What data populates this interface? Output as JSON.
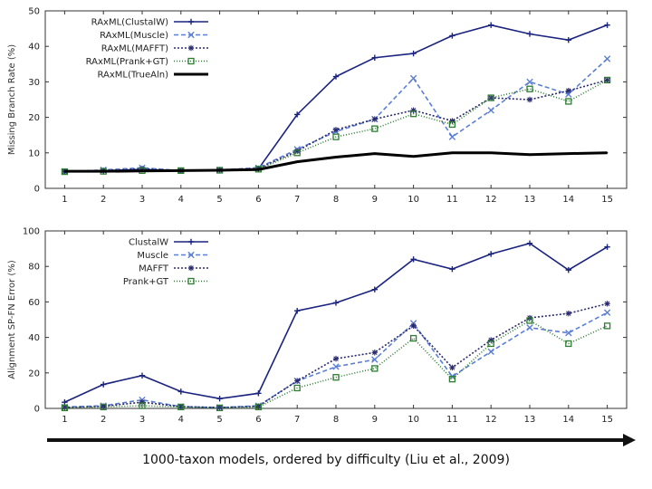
{
  "chart_data": [
    {
      "type": "line",
      "ylabel": "Missing Branch Rate (%)",
      "x": [
        1,
        2,
        3,
        4,
        5,
        6,
        7,
        8,
        9,
        10,
        11,
        12,
        13,
        14,
        15
      ],
      "xlim": [
        0.5,
        15.5
      ],
      "ylim": [
        0,
        50
      ],
      "yticks": [
        0,
        10,
        20,
        30,
        40,
        50
      ],
      "legend_position": "top-left",
      "series": [
        {
          "name": "RAxML(ClustalW)",
          "color": "#1a237e",
          "dash": "",
          "marker": "plus",
          "values": [
            4.8,
            5.0,
            5.3,
            5.0,
            5.2,
            5.5,
            20.8,
            31.5,
            36.8,
            38.0,
            43.0,
            46.0,
            43.5,
            41.8,
            46.0
          ]
        },
        {
          "name": "RAxML(Muscle)",
          "color": "#5b7fd6",
          "dash": "5,3",
          "marker": "x",
          "values": [
            4.7,
            5.2,
            5.8,
            5.0,
            5.2,
            5.8,
            11.0,
            16.0,
            19.5,
            31.0,
            14.5,
            22.0,
            30.0,
            26.5,
            36.5
          ]
        },
        {
          "name": "RAxML(MAFFT)",
          "color": "#2a2a6e",
          "dash": "2,2",
          "marker": "star",
          "values": [
            4.8,
            5.0,
            5.5,
            5.0,
            5.2,
            5.6,
            10.5,
            16.5,
            19.5,
            22.0,
            19.0,
            25.5,
            25.0,
            27.5,
            30.5
          ]
        },
        {
          "name": "RAxML(Prank+GT)",
          "color": "#2e7d32",
          "dash": "1,2",
          "marker": "square",
          "values": [
            4.7,
            4.8,
            5.0,
            5.0,
            5.1,
            5.4,
            10.0,
            14.5,
            16.8,
            21.0,
            18.0,
            25.5,
            28.0,
            24.5,
            30.5
          ]
        },
        {
          "name": "RAxML(TrueAln)",
          "color": "#000000",
          "dash": "",
          "marker": "none",
          "width": 3,
          "values": [
            4.8,
            4.8,
            4.9,
            5.0,
            5.1,
            5.3,
            7.5,
            8.8,
            9.8,
            9.0,
            10.0,
            10.0,
            9.5,
            9.8,
            10.0
          ]
        }
      ]
    },
    {
      "type": "line",
      "ylabel": "Alignment SP-FN Error (%)",
      "x": [
        1,
        2,
        3,
        4,
        5,
        6,
        7,
        8,
        9,
        10,
        11,
        12,
        13,
        14,
        15
      ],
      "xlim": [
        0.5,
        15.5
      ],
      "ylim": [
        0,
        100
      ],
      "yticks": [
        0,
        20,
        40,
        60,
        80,
        100
      ],
      "legend_position": "top-left",
      "series": [
        {
          "name": "ClustalW",
          "color": "#1a237e",
          "dash": "",
          "marker": "plus",
          "values": [
            3.5,
            13.5,
            18.5,
            9.5,
            5.5,
            8.5,
            55.0,
            59.5,
            67.0,
            84.0,
            78.5,
            87.0,
            93.0,
            78.0,
            91.0
          ]
        },
        {
          "name": "Muscle",
          "color": "#5b7fd6",
          "dash": "5,3",
          "marker": "x",
          "values": [
            0.8,
            1.5,
            4.8,
            1.0,
            0.5,
            1.5,
            15.5,
            23.5,
            27.5,
            48.0,
            18.0,
            32.0,
            45.5,
            42.5,
            54.0
          ]
        },
        {
          "name": "MAFFT",
          "color": "#2a2a6e",
          "dash": "2,2",
          "marker": "star",
          "values": [
            0.5,
            1.2,
            3.5,
            1.0,
            0.5,
            1.2,
            15.5,
            28.0,
            31.5,
            46.5,
            23.0,
            38.5,
            51.0,
            53.5,
            59.0
          ]
        },
        {
          "name": "Prank+GT",
          "color": "#2e7d32",
          "dash": "1,2",
          "marker": "square",
          "values": [
            0.3,
            0.8,
            1.5,
            0.8,
            0.3,
            0.8,
            11.5,
            17.5,
            22.5,
            39.5,
            16.5,
            36.5,
            49.5,
            36.5,
            46.5
          ]
        }
      ]
    }
  ],
  "caption": "1000-taxon models, ordered by difficulty (Liu et al., 2009)"
}
